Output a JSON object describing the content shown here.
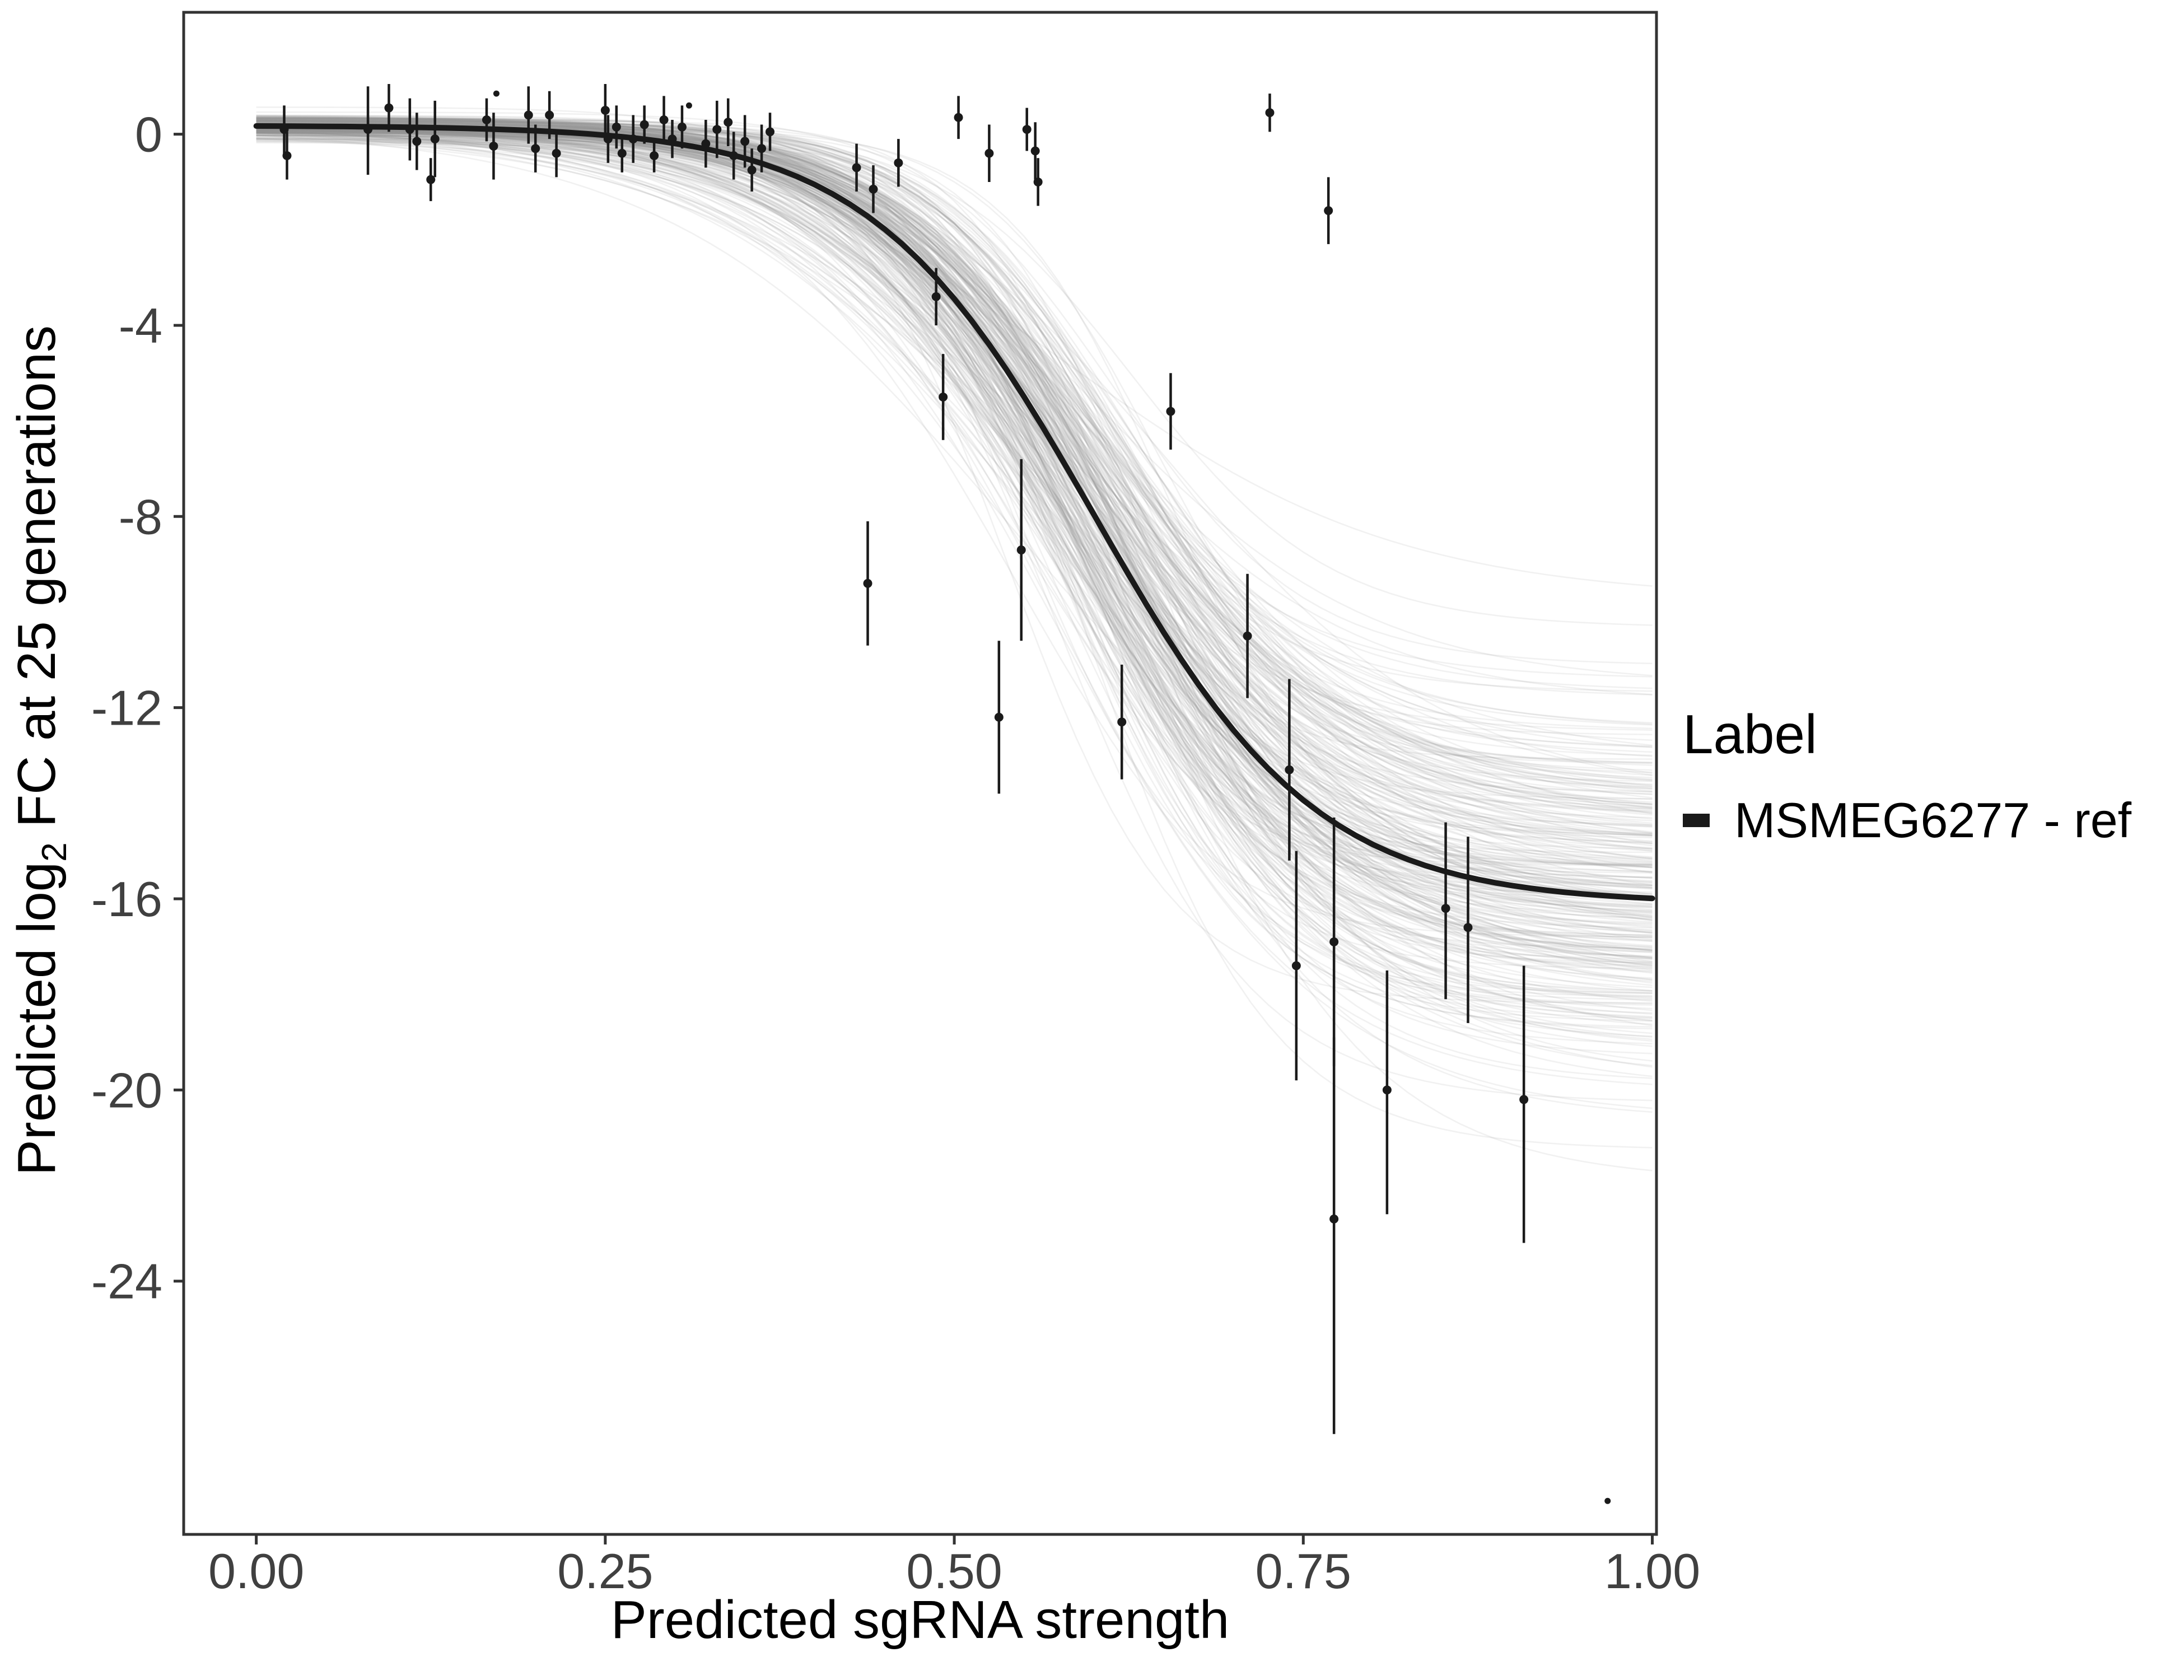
{
  "chart_data": {
    "type": "scatter",
    "title": "",
    "xlabel": "Predicted sgRNA strength",
    "ylabel": "Predicted log2 FC at 25 generations",
    "ylabel_parts": {
      "pre": "Predicted  log",
      "sub": "2",
      "post": " FC at 25 generations"
    },
    "xlim": [
      -0.052,
      1.003
    ],
    "ylim": [
      -29.3,
      2.55
    ],
    "x_ticks": [
      0.0,
      0.25,
      0.5,
      0.75,
      1.0
    ],
    "x_tick_labels": [
      "0.00",
      "0.25",
      "0.50",
      "0.75",
      "1.00"
    ],
    "y_ticks": [
      0,
      -4,
      -8,
      -12,
      -16,
      -20,
      -24
    ],
    "y_tick_labels": [
      "0",
      "-4",
      "-8",
      "-12",
      "-16",
      "-20",
      "-24"
    ],
    "grid": "off",
    "legend": {
      "position": "right",
      "title": "Label",
      "entries": [
        {
          "label": "MSMEG6277 - ref",
          "color": "#1a1a1a"
        }
      ]
    },
    "fit_curve": {
      "model": "logistic",
      "top": 0.18,
      "bottom": -16.1,
      "midpoint": 0.6,
      "slope": 12.5,
      "color": "#1a1a1a",
      "width": 10
    },
    "posterior_ensemble": {
      "count": 300,
      "color": "#8f8f8f",
      "opacity": 0.13,
      "width": 2.6,
      "top_sd": 0.12,
      "bottom_mean": -16.1,
      "bottom_sd": 2.1,
      "midpoint_sd": 0.022,
      "slope_sd": 2.2,
      "seed": 7
    },
    "point_color": "#1a1a1a",
    "point_columns": [
      "x",
      "y",
      "ylo",
      "yhi"
    ],
    "points": [
      [
        0.02,
        0.1,
        -0.45,
        0.6
      ],
      [
        0.022,
        -0.45,
        -0.95,
        0.05
      ],
      [
        0.08,
        0.1,
        -0.85,
        1.0
      ],
      [
        0.095,
        0.55,
        0.05,
        1.05
      ],
      [
        0.11,
        0.1,
        -0.55,
        0.75
      ],
      [
        0.115,
        -0.15,
        -0.75,
        0.45
      ],
      [
        0.128,
        -0.1,
        -0.9,
        0.7
      ],
      [
        0.125,
        -0.95,
        -1.4,
        -0.5
      ],
      [
        0.165,
        0.3,
        -0.15,
        0.75
      ],
      [
        0.17,
        -0.25,
        -0.95,
        0.45
      ],
      [
        0.172,
        0.85,
        0.85,
        0.85
      ],
      [
        0.195,
        0.4,
        -0.2,
        1.0
      ],
      [
        0.2,
        -0.3,
        -0.8,
        0.2
      ],
      [
        0.21,
        0.4,
        -0.1,
        0.9
      ],
      [
        0.215,
        -0.4,
        -0.9,
        0.1
      ],
      [
        0.25,
        0.5,
        -0.05,
        1.05
      ],
      [
        0.252,
        -0.1,
        -0.6,
        0.4
      ],
      [
        0.258,
        0.15,
        -0.3,
        0.6
      ],
      [
        0.262,
        -0.4,
        -0.8,
        0.0
      ],
      [
        0.27,
        -0.1,
        -0.6,
        0.4
      ],
      [
        0.278,
        0.2,
        -0.2,
        0.6
      ],
      [
        0.285,
        -0.45,
        -0.8,
        -0.1
      ],
      [
        0.292,
        0.3,
        -0.2,
        0.8
      ],
      [
        0.298,
        -0.1,
        -0.5,
        0.3
      ],
      [
        0.305,
        0.15,
        -0.3,
        0.6
      ],
      [
        0.31,
        0.6,
        0.6,
        0.6
      ],
      [
        0.322,
        -0.2,
        -0.7,
        0.3
      ],
      [
        0.33,
        0.1,
        -0.5,
        0.7
      ],
      [
        0.338,
        0.25,
        -0.25,
        0.75
      ],
      [
        0.342,
        -0.45,
        -0.95,
        0.05
      ],
      [
        0.35,
        -0.15,
        -0.7,
        0.4
      ],
      [
        0.355,
        -0.75,
        -1.2,
        -0.3
      ],
      [
        0.362,
        -0.3,
        -0.8,
        0.2
      ],
      [
        0.368,
        0.05,
        -0.35,
        0.45
      ],
      [
        0.43,
        -0.7,
        -1.2,
        -0.2
      ],
      [
        0.442,
        -1.15,
        -1.65,
        -0.65
      ],
      [
        0.438,
        -9.4,
        -10.7,
        -8.1
      ],
      [
        0.46,
        -0.6,
        -1.1,
        -0.1
      ],
      [
        0.487,
        -3.4,
        -4.0,
        -2.8
      ],
      [
        0.492,
        -5.5,
        -6.4,
        -4.6
      ],
      [
        0.503,
        0.35,
        -0.1,
        0.8
      ],
      [
        0.525,
        -0.4,
        -1.0,
        0.2
      ],
      [
        0.532,
        -12.2,
        -13.8,
        -10.6
      ],
      [
        0.548,
        -8.7,
        -10.6,
        -6.8
      ],
      [
        0.552,
        0.1,
        -0.35,
        0.55
      ],
      [
        0.558,
        -0.35,
        -0.95,
        0.25
      ],
      [
        0.56,
        -1.0,
        -1.5,
        -0.5
      ],
      [
        0.62,
        -12.3,
        -13.5,
        -11.1
      ],
      [
        0.655,
        -5.8,
        -6.6,
        -5.0
      ],
      [
        0.71,
        -10.5,
        -11.8,
        -9.2
      ],
      [
        0.726,
        0.45,
        0.05,
        0.85
      ],
      [
        0.74,
        -13.3,
        -15.2,
        -11.4
      ],
      [
        0.745,
        -17.4,
        -19.8,
        -15.0
      ],
      [
        0.768,
        -1.6,
        -2.3,
        -0.9
      ],
      [
        0.772,
        -16.9,
        -19.5,
        -14.3
      ],
      [
        0.772,
        -22.7,
        -27.2,
        -18.9
      ],
      [
        0.81,
        -20.0,
        -22.6,
        -17.5
      ],
      [
        0.852,
        -16.2,
        -18.1,
        -14.4
      ],
      [
        0.868,
        -16.6,
        -18.6,
        -14.7
      ],
      [
        0.908,
        -20.2,
        -23.2,
        -17.4
      ],
      [
        0.968,
        -28.6,
        -28.6,
        -28.6
      ]
    ]
  }
}
